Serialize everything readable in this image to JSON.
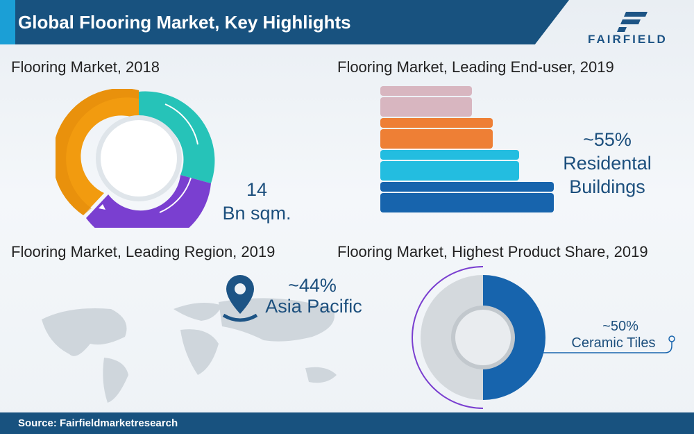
{
  "header": {
    "title": "Global Flooring Market, Key Highlights"
  },
  "logo": {
    "text": "FAIRFIELD"
  },
  "sections": {
    "market_2018": {
      "title": "Flooring Market, 2018",
      "value": "14",
      "unit": "Bn sqm."
    },
    "end_user": {
      "title": "Flooring Market, Leading End-user, 2019",
      "share": "~55%",
      "line1": "Residental",
      "line2": "Buildings"
    },
    "region": {
      "title": "Flooring Market, Leading Region, 2019",
      "share": "~44%",
      "name": "Asia Pacific"
    },
    "product": {
      "title": "Flooring Market, Highest Product Share, 2019",
      "share": "~50%",
      "name": "Ceramic Tiles"
    }
  },
  "colors": {
    "header": "#18527f",
    "accent": "#1b9fd6",
    "orange": "#f29b0f",
    "teal": "#26c3b8",
    "purple": "#7a3fd0",
    "blue": "#1764ad",
    "cyan": "#23bde0",
    "pink": "#d8b6c0",
    "bar_orange": "#ee7f35"
  },
  "footer": {
    "source": "Source: Fairfieldmarketresearch"
  }
}
